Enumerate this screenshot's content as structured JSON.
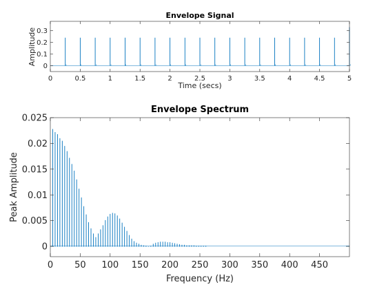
{
  "chart_data": [
    {
      "type": "line",
      "title": "Envelope Signal",
      "xlabel": "Time (secs)",
      "ylabel": "Amplitude",
      "xlim": [
        0,
        5
      ],
      "ylim": [
        -0.05,
        0.38
      ],
      "x_ticks": [
        0,
        0.5,
        1,
        1.5,
        2,
        2.5,
        3,
        3.5,
        4,
        4.5,
        5
      ],
      "x_tick_labels": [
        "0",
        "0.5",
        "1",
        "1.5",
        "2",
        "2.5",
        "3",
        "3.5",
        "4",
        "4.5",
        "5"
      ],
      "y_ticks": [
        0,
        0.1,
        0.2,
        0.3
      ],
      "y_tick_labels": [
        "0",
        "0.1",
        "0.2",
        "0.3"
      ],
      "grid": false,
      "series": [
        {
          "color": "#0072BD",
          "baseline": 0,
          "impulse_times": [
            0.25,
            0.5,
            0.75,
            1.0,
            1.25,
            1.5,
            1.75,
            2.0,
            2.25,
            2.5,
            2.75,
            3.0,
            3.25,
            3.5,
            3.75,
            4.0,
            4.25,
            4.5,
            4.75,
            5.0
          ],
          "impulse_peaks": [
            0.24,
            0.24,
            0.24,
            0.24,
            0.24,
            0.24,
            0.24,
            0.24,
            0.24,
            0.24,
            0.24,
            0.24,
            0.24,
            0.24,
            0.24,
            0.24,
            0.24,
            0.24,
            0.24,
            0.33
          ]
        }
      ]
    },
    {
      "type": "line",
      "title": "Envelope Spectrum",
      "xlabel": "Frequency (Hz)",
      "ylabel": "Peak Amplitude",
      "xlim": [
        0,
        500
      ],
      "ylim": [
        -0.002,
        0.025
      ],
      "x_ticks": [
        0,
        50,
        100,
        150,
        200,
        250,
        300,
        350,
        400,
        450
      ],
      "x_tick_labels": [
        "0",
        "50",
        "100",
        "150",
        "200",
        "250",
        "300",
        "350",
        "400",
        "450"
      ],
      "y_ticks": [
        0,
        0.005,
        0.01,
        0.015,
        0.02,
        0.025
      ],
      "y_tick_labels": [
        "0",
        "0.005",
        "0.01",
        "0.015",
        "0.02",
        "0.025"
      ],
      "grid": false,
      "series": [
        {
          "color": "#0072BD",
          "harmonic_spacing_hz": 4,
          "peaks": [
            {
              "x": 4,
              "y": 0.0228
            },
            {
              "x": 8,
              "y": 0.0222
            },
            {
              "x": 12,
              "y": 0.0218
            },
            {
              "x": 16,
              "y": 0.021
            },
            {
              "x": 20,
              "y": 0.0205
            },
            {
              "x": 24,
              "y": 0.0195
            },
            {
              "x": 28,
              "y": 0.0185
            },
            {
              "x": 32,
              "y": 0.0172
            },
            {
              "x": 36,
              "y": 0.016
            },
            {
              "x": 40,
              "y": 0.0147
            },
            {
              "x": 44,
              "y": 0.013
            },
            {
              "x": 48,
              "y": 0.0112
            },
            {
              "x": 52,
              "y": 0.0095
            },
            {
              "x": 56,
              "y": 0.0078
            },
            {
              "x": 60,
              "y": 0.0062
            },
            {
              "x": 64,
              "y": 0.0047
            },
            {
              "x": 68,
              "y": 0.0035
            },
            {
              "x": 72,
              "y": 0.0025
            },
            {
              "x": 76,
              "y": 0.0018
            },
            {
              "x": 80,
              "y": 0.0025
            },
            {
              "x": 84,
              "y": 0.0033
            },
            {
              "x": 88,
              "y": 0.0041
            },
            {
              "x": 92,
              "y": 0.0051
            },
            {
              "x": 96,
              "y": 0.0058
            },
            {
              "x": 100,
              "y": 0.0063
            },
            {
              "x": 104,
              "y": 0.0065
            },
            {
              "x": 108,
              "y": 0.0064
            },
            {
              "x": 112,
              "y": 0.006
            },
            {
              "x": 116,
              "y": 0.0054
            },
            {
              "x": 120,
              "y": 0.0046
            },
            {
              "x": 124,
              "y": 0.0038
            },
            {
              "x": 128,
              "y": 0.003
            },
            {
              "x": 132,
              "y": 0.0022
            },
            {
              "x": 136,
              "y": 0.0015
            },
            {
              "x": 140,
              "y": 0.001
            },
            {
              "x": 144,
              "y": 0.0007
            },
            {
              "x": 148,
              "y": 0.0005
            },
            {
              "x": 152,
              "y": 0.0003
            },
            {
              "x": 156,
              "y": 0.0002
            },
            {
              "x": 160,
              "y": 0.0001
            },
            {
              "x": 164,
              "y": 0.0
            },
            {
              "x": 168,
              "y": 0.0001
            },
            {
              "x": 172,
              "y": 0.0005
            },
            {
              "x": 176,
              "y": 0.0007
            },
            {
              "x": 180,
              "y": 0.0008
            },
            {
              "x": 184,
              "y": 0.0009
            },
            {
              "x": 188,
              "y": 0.0009
            },
            {
              "x": 192,
              "y": 0.0009
            },
            {
              "x": 196,
              "y": 0.0008
            },
            {
              "x": 200,
              "y": 0.0008
            },
            {
              "x": 204,
              "y": 0.0007
            },
            {
              "x": 208,
              "y": 0.0006
            },
            {
              "x": 212,
              "y": 0.0005
            },
            {
              "x": 216,
              "y": 0.0004
            },
            {
              "x": 220,
              "y": 0.0003
            },
            {
              "x": 224,
              "y": 0.0003
            },
            {
              "x": 228,
              "y": 0.0002
            },
            {
              "x": 232,
              "y": 0.0002
            },
            {
              "x": 236,
              "y": 0.0002
            },
            {
              "x": 240,
              "y": 0.0002
            },
            {
              "x": 244,
              "y": 0.0001
            },
            {
              "x": 248,
              "y": 0.0001
            },
            {
              "x": 252,
              "y": 0.0001
            },
            {
              "x": 256,
              "y": 0.0001
            },
            {
              "x": 260,
              "y": 0.0001
            }
          ],
          "noise_floor": 0.0001
        }
      ]
    }
  ]
}
